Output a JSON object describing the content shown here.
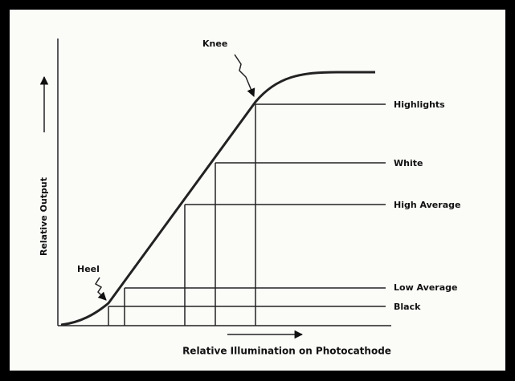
{
  "annotations": {
    "knee": "Knee",
    "heel": "Heel"
  },
  "levels": [
    "Highlights",
    "White",
    "High Average",
    "Low Average",
    "Black"
  ],
  "axes": {
    "y_label": "Relative Output",
    "x_label": "Relative Illumination on Photocathode"
  }
}
